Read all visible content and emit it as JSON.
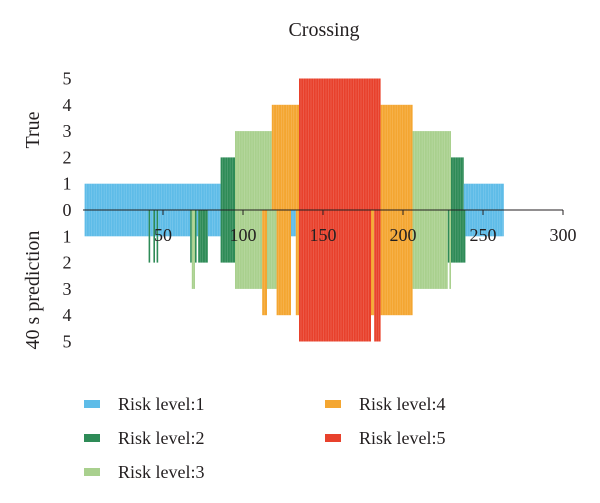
{
  "chart_data": {
    "type": "bar",
    "title": "Crossing",
    "x_ticks": [
      "50",
      "100",
      "150",
      "200",
      "250",
      "300"
    ],
    "x_tick_values": [
      50,
      100,
      150,
      200,
      250,
      300
    ],
    "xlim": [
      0,
      300
    ],
    "y_axis": {
      "upper_label": "True",
      "lower_label": "40 s prediction",
      "tick_labels": [
        "5",
        "4",
        "3",
        "2",
        "1",
        "0",
        "1",
        "2",
        "3",
        "4",
        "5"
      ],
      "upper_range": [
        0,
        5
      ],
      "lower_range": [
        0,
        5
      ]
    },
    "colors": {
      "1": "#5ebce8",
      "2": "#2e8b57",
      "3": "#a9d08e",
      "4": "#f4a631",
      "5": "#e8412c"
    },
    "legend": [
      {
        "level": 1,
        "label": "Risk level:1"
      },
      {
        "level": 4,
        "label": "Risk level:4"
      },
      {
        "level": 2,
        "label": "Risk level:2"
      },
      {
        "level": 5,
        "label": "Risk level:5"
      },
      {
        "level": 3,
        "label": "Risk level:3"
      }
    ],
    "series": [
      {
        "name": "True",
        "segments": [
          {
            "start": 1,
            "end": 86,
            "level": 1
          },
          {
            "start": 86,
            "end": 95,
            "level": 2
          },
          {
            "start": 95,
            "end": 118,
            "level": 3
          },
          {
            "start": 118,
            "end": 135,
            "level": 4
          },
          {
            "start": 135,
            "end": 186,
            "level": 5
          },
          {
            "start": 186,
            "end": 206,
            "level": 4
          },
          {
            "start": 206,
            "end": 230,
            "level": 3
          },
          {
            "start": 230,
            "end": 238,
            "level": 2
          },
          {
            "start": 238,
            "end": 263,
            "level": 1
          }
        ]
      },
      {
        "name": "40 s prediction",
        "segments": [
          {
            "start": 1,
            "end": 41,
            "level": 1
          },
          {
            "start": 41,
            "end": 42,
            "level": 2
          },
          {
            "start": 42,
            "end": 44,
            "level": 1
          },
          {
            "start": 44,
            "end": 45,
            "level": 2
          },
          {
            "start": 45,
            "end": 46,
            "level": 1
          },
          {
            "start": 46,
            "end": 47,
            "level": 2
          },
          {
            "start": 47,
            "end": 67,
            "level": 1
          },
          {
            "start": 67,
            "end": 68,
            "level": 2
          },
          {
            "start": 68,
            "end": 70,
            "level": 3
          },
          {
            "start": 70,
            "end": 71,
            "level": 2
          },
          {
            "start": 71,
            "end": 72,
            "level": 1
          },
          {
            "start": 72,
            "end": 78,
            "level": 2
          },
          {
            "start": 78,
            "end": 86,
            "level": 1
          },
          {
            "start": 86,
            "end": 95,
            "level": 2
          },
          {
            "start": 95,
            "end": 112,
            "level": 3
          },
          {
            "start": 112,
            "end": 115,
            "level": 4
          },
          {
            "start": 115,
            "end": 121,
            "level": 3
          },
          {
            "start": 121,
            "end": 130,
            "level": 4
          },
          {
            "start": 130,
            "end": 133,
            "level": 1
          },
          {
            "start": 133,
            "end": 135,
            "level": 4
          },
          {
            "start": 135,
            "end": 180,
            "level": 5
          },
          {
            "start": 180,
            "end": 182,
            "level": 4
          },
          {
            "start": 182,
            "end": 186,
            "level": 5
          },
          {
            "start": 186,
            "end": 206,
            "level": 4
          },
          {
            "start": 206,
            "end": 228,
            "level": 3
          },
          {
            "start": 228,
            "end": 229,
            "level": 2
          },
          {
            "start": 229,
            "end": 230,
            "level": 3
          },
          {
            "start": 230,
            "end": 239,
            "level": 2
          },
          {
            "start": 239,
            "end": 263,
            "level": 1
          }
        ]
      }
    ]
  }
}
